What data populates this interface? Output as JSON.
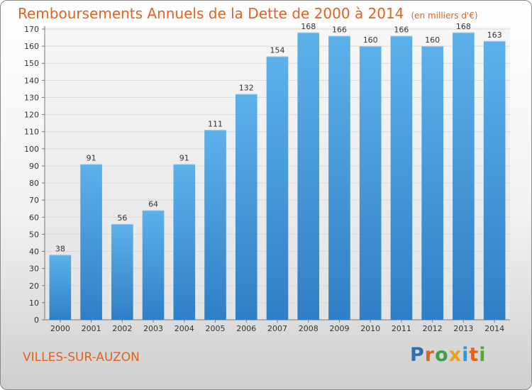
{
  "page": {
    "title": "Remboursements Annuels de la Dette de 2000 à 2014",
    "unit_note": "(en milliers d'€)",
    "commune": "VILLES-SUR-AUZON",
    "logo_text": "Proxiti",
    "colors": {
      "title": "#e2621f",
      "bar_top": "#5db1ea",
      "bar_bottom": "#2f7fc6",
      "grid": "#d9d9d9",
      "axis_text": "#333333"
    }
  },
  "chart_data": {
    "type": "bar",
    "title": "Remboursements Annuels de la Dette de 2000 à 2014",
    "subtitle": "(en milliers d'€)",
    "xlabel": "",
    "ylabel": "",
    "categories": [
      "2000",
      "2001",
      "2002",
      "2003",
      "2004",
      "2005",
      "2006",
      "2007",
      "2008",
      "2009",
      "2010",
      "2011",
      "2012",
      "2013",
      "2014"
    ],
    "values": [
      38,
      91,
      56,
      64,
      91,
      111,
      132,
      154,
      168,
      166,
      160,
      166,
      160,
      168,
      163
    ],
    "ylim": [
      0,
      170
    ],
    "ytick_step": 10,
    "grid": true,
    "data_labels": true
  }
}
